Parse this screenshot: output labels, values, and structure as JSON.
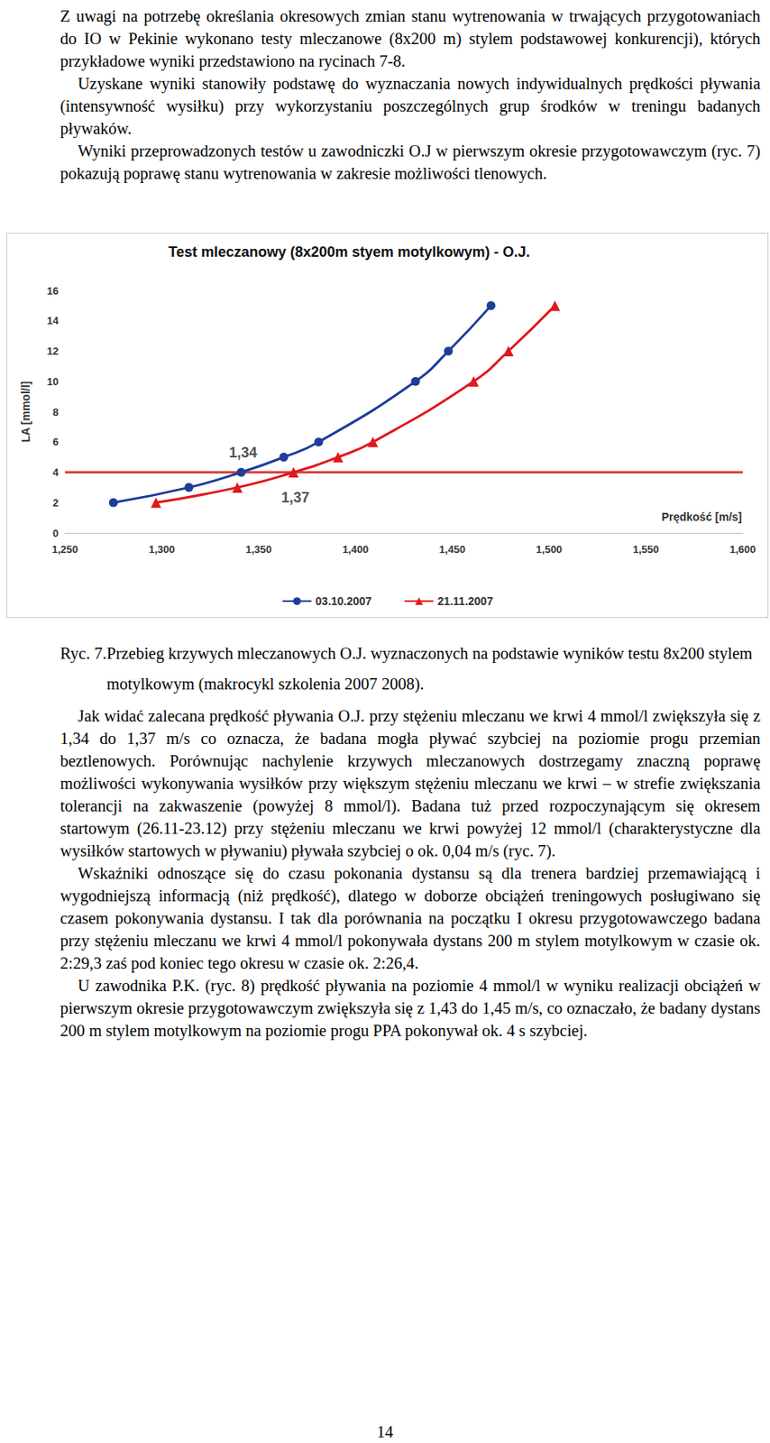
{
  "intro": "Z uwagi na potrzebę określania okresowych zmian stanu wytrenowania w trwających przygotowaniach do IO w Pekinie wykonano testy mleczanowe (8x200 m) stylem podstawowej konkurencji), których przykładowe wyniki przedstawiono na rycinach 7-8.",
  "paragraphs_before": [
    "Uzyskane wyniki stanowiły podstawę do wyznaczania nowych indywidualnych prędkości pływania (intensywność wysiłku) przy wykorzystaniu poszczególnych grup środków w treningu badanych pływaków.",
    "Wyniki przeprowadzonych testów u zawodniczki O.J w pierwszym okresie przygotowawczym (ryc. 7) pokazują poprawę stanu wytrenowania w zakresie możliwości tlenowych."
  ],
  "chart_data": {
    "type": "line",
    "title": "Test mleczanowy (8x200m styem motylkowym) - O.J.",
    "x_label": "Prędkość [m/s]",
    "y_label": "LA [mmol/l]",
    "xlim": [
      1.25,
      1.6
    ],
    "xticks": [
      {
        "value": 1.25,
        "label": "1,250"
      },
      {
        "value": 1.3,
        "label": "1,300"
      },
      {
        "value": 1.35,
        "label": "1,350"
      },
      {
        "value": 1.4,
        "label": "1,400"
      },
      {
        "value": 1.45,
        "label": "1,450"
      },
      {
        "value": 1.5,
        "label": "1,500"
      },
      {
        "value": 1.55,
        "label": "1,550"
      },
      {
        "value": 1.6,
        "label": "1,600"
      }
    ],
    "ylim": [
      0,
      16
    ],
    "yticks": [
      0,
      2,
      4,
      6,
      8,
      10,
      12,
      14,
      16
    ],
    "grid": false,
    "legend": "bottom",
    "threshold": 4,
    "series": [
      {
        "name": "03.10.2007",
        "color": "#1f3d99",
        "marker": "circle",
        "x": [
          1.275,
          1.314,
          1.341,
          1.363,
          1.381,
          1.431,
          1.448,
          1.47
        ],
        "values": [
          2,
          3,
          4,
          5,
          6,
          10,
          12,
          15
        ]
      },
      {
        "name": "21.11.2007",
        "color": "#e0191c",
        "marker": "triangle",
        "x": [
          1.297,
          1.339,
          1.368,
          1.391,
          1.409,
          1.461,
          1.479,
          1.503
        ],
        "values": [
          2,
          3,
          4,
          5,
          6,
          10,
          12,
          15
        ]
      }
    ],
    "annotations": [
      {
        "text": "1,34",
        "x": 1.342,
        "y": 5.3
      },
      {
        "text": "1,37",
        "x": 1.369,
        "y": 2.35
      }
    ]
  },
  "caption": {
    "label": "Ryc. 7.",
    "text": "Przebieg krzywych mleczanowych O.J. wyznaczonych na podstawie wyników testu 8x200 stylem motylkowym (makrocykl szkolenia 2007 2008)."
  },
  "paragraphs_after": [
    "Jak widać zalecana prędkość pływania O.J. przy stężeniu mleczanu we krwi 4 mmol/l zwiększyła się z 1,34 do 1,37 m/s co oznacza, że badana mogła pływać szybciej na poziomie progu przemian beztlenowych. Porównując nachylenie krzywych mleczanowych dostrzegamy znaczną poprawę możliwości wykonywania wysiłków przy większym stężeniu mleczanu we krwi – w strefie zwiększania tolerancji na zakwaszenie (powyżej 8 mmol/l). Badana tuż przed rozpoczynającym się okresem startowym (26.11-23.12) przy stężeniu mleczanu we krwi powyżej 12 mmol/l (charakterystyczne dla wysiłków startowych w pływaniu) pływała szybciej o ok. 0,04 m/s (ryc. 7).",
    "Wskaźniki odnoszące się do czasu pokonania dystansu są dla trenera bardziej przemawiającą i wygodniejszą informacją (niż prędkość), dlatego w doborze obciążeń treningowych posługiwano się czasem pokonywania dystansu. I tak dla porównania na początku I okresu przygotowawczego badana przy stężeniu mleczanu we krwi 4 mmol/l pokonywała dystans 200 m stylem motylkowym w czasie ok. 2:29,3 zaś pod koniec tego okresu w czasie ok. 2:26,4.",
    "U zawodnika P.K. (ryc. 8) prędkość pływania na poziomie 4 mmol/l w wyniku realizacji obciążeń w pierwszym okresie przygotowawczym zwiększyła się z 1,43 do 1,45 m/s, co oznaczało, że badany dystans 200 m stylem motylkowym na poziomie progu PPA pokonywał ok. 4 s szybciej."
  ],
  "page_number": 14
}
